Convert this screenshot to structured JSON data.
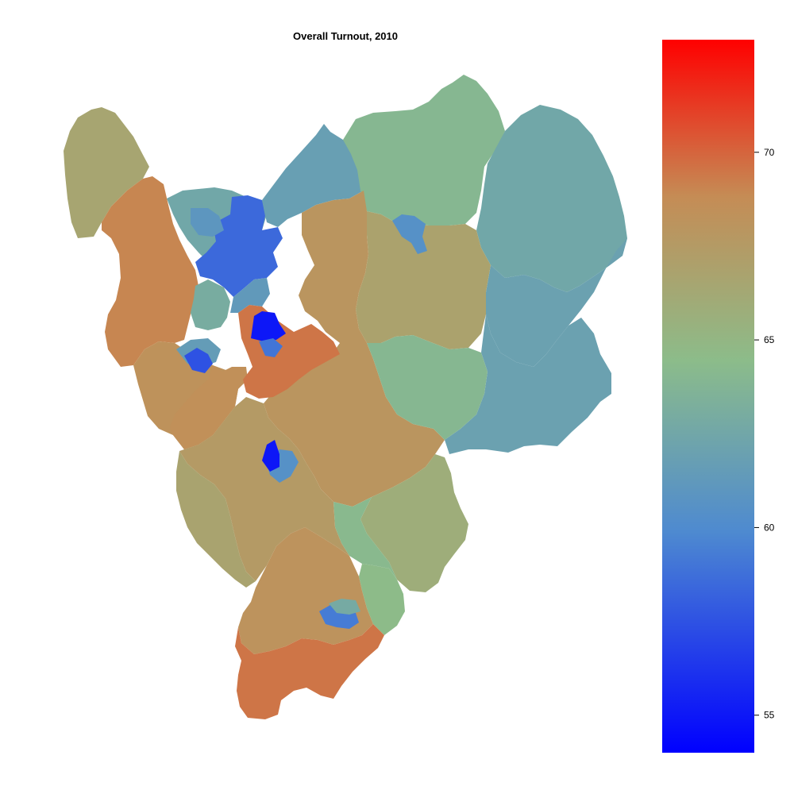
{
  "title": "Overall Turnout, 2010",
  "colors": {
    "scale_low": "#0000ff",
    "scale_mid_low": "#4e8ad0",
    "scale_mid": "#8cbc8a",
    "scale_mid_high": "#c58c55",
    "scale_high": "#ff0000",
    "outline": "#222222"
  },
  "legend": {
    "type": "continuous-colorbar",
    "min": 54,
    "max": 73,
    "ticks": [
      {
        "value": 55,
        "label": "55"
      },
      {
        "value": 60,
        "label": "60"
      },
      {
        "value": 65,
        "label": "65"
      },
      {
        "value": 70,
        "label": "70"
      }
    ]
  },
  "regions": [
    {
      "id": "northwest-upland",
      "turnout": 66.5
    },
    {
      "id": "west-band",
      "turnout": 69.0
    },
    {
      "id": "west-lower",
      "turnout": 68.3
    },
    {
      "id": "north-center-a",
      "turnout": 62.5
    },
    {
      "id": "north-center-b",
      "turnout": 58.5
    },
    {
      "id": "north-center-c",
      "turnout": 61.0
    },
    {
      "id": "north-center-d",
      "turnout": 61.3
    },
    {
      "id": "north-center-e",
      "turnout": 63.0
    },
    {
      "id": "center-red",
      "turnout": 69.5
    },
    {
      "id": "center-dark-blue",
      "turnout": 55.0
    },
    {
      "id": "center-blue-small",
      "turnout": 59.0
    },
    {
      "id": "left-blue-small",
      "turnout": 57.5
    },
    {
      "id": "left-teal-small",
      "turnout": 61.5
    },
    {
      "id": "northeast-top",
      "turnout": 61.8
    },
    {
      "id": "north-coast",
      "turnout": 64.0
    },
    {
      "id": "far-east",
      "turnout": 62.5
    },
    {
      "id": "east-coast",
      "turnout": 62.0
    },
    {
      "id": "east-center",
      "turnout": 66.8
    },
    {
      "id": "east-blue-small",
      "turnout": 60.5
    },
    {
      "id": "central-orange",
      "turnout": 68.0
    },
    {
      "id": "south-east-green",
      "turnout": 64.0
    },
    {
      "id": "southeast-tan",
      "turnout": 65.8
    },
    {
      "id": "south-green",
      "turnout": 64.2
    },
    {
      "id": "south-green-b",
      "turnout": 64.5
    },
    {
      "id": "mid-south-tan",
      "turnout": 66.7
    },
    {
      "id": "mid-left-orange",
      "turnout": 68.5
    },
    {
      "id": "mid-tan-a",
      "turnout": 67.5
    },
    {
      "id": "south-dark-blue",
      "turnout": 55.0
    },
    {
      "id": "south-blue-ring",
      "turnout": 60.5
    },
    {
      "id": "south-central-orange",
      "turnout": 68.2
    },
    {
      "id": "far-south-red",
      "turnout": 69.5
    },
    {
      "id": "far-south-blue",
      "turnout": 59.3
    },
    {
      "id": "far-south-teal",
      "turnout": 62.8
    }
  ]
}
